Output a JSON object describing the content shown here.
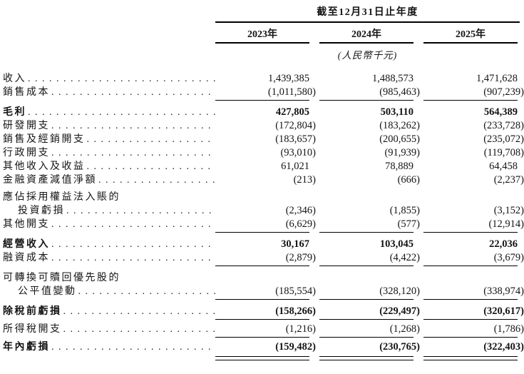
{
  "header": {
    "period_title": "截至12月31日止年度",
    "columns": [
      "2023年",
      "2024年",
      "2025年"
    ],
    "unit_note": "(人民幣千元)"
  },
  "colors": {
    "text": "#141414",
    "rule": "#000000",
    "background": "#ffffff"
  },
  "chart_data": {
    "type": "table",
    "title": "截至12月31日止年度 (人民幣千元)",
    "categories": [
      "2023年",
      "2024年",
      "2025年"
    ],
    "series": [
      {
        "name": "收入",
        "values": [
          1439385,
          1488573,
          1471628
        ]
      },
      {
        "name": "銷售成本",
        "values": [
          -1011580,
          -985463,
          -907239
        ]
      },
      {
        "name": "毛利",
        "values": [
          427805,
          503110,
          564389
        ]
      },
      {
        "name": "研發開支",
        "values": [
          -172804,
          -183262,
          -233728
        ]
      },
      {
        "name": "銷售及經銷開支",
        "values": [
          -183657,
          -200655,
          -235072
        ]
      },
      {
        "name": "行政開支",
        "values": [
          -93010,
          -91939,
          -119708
        ]
      },
      {
        "name": "其他收入及收益",
        "values": [
          61021,
          78889,
          64458
        ]
      },
      {
        "name": "金融資產減值淨額",
        "values": [
          -213,
          -666,
          -2237
        ]
      },
      {
        "name": "應佔採用權益法入賬的投資虧損",
        "values": [
          -2346,
          -1855,
          -3152
        ]
      },
      {
        "name": "其他開支",
        "values": [
          -6629,
          -577,
          -12914
        ]
      },
      {
        "name": "經營收入",
        "values": [
          30167,
          103045,
          22036
        ]
      },
      {
        "name": "融資成本",
        "values": [
          -2879,
          -4422,
          -3679
        ]
      },
      {
        "name": "可轉換可贖回優先股的公平值變動",
        "values": [
          -185554,
          -328120,
          -338974
        ]
      },
      {
        "name": "除稅前虧損",
        "values": [
          -158266,
          -229497,
          -320617
        ]
      },
      {
        "name": "所得稅開支",
        "values": [
          -1216,
          -1268,
          -1786
        ]
      },
      {
        "name": "年內虧損",
        "values": [
          -159482,
          -230765,
          -322403
        ]
      }
    ]
  },
  "rows": [
    {
      "label": "收入",
      "dots": true,
      "bold": false,
      "indent": false,
      "gap": null,
      "rule": null,
      "values": [
        "1,439,385",
        "1,488,573",
        "1,471,628"
      ]
    },
    {
      "label": "銷售成本",
      "dots": true,
      "bold": false,
      "indent": false,
      "gap": null,
      "rule": "single",
      "values": [
        "(1,011,580)",
        "(985,463)",
        "(907,239)"
      ]
    },
    {
      "label": "毛利",
      "dots": true,
      "bold": true,
      "indent": false,
      "gap": "m",
      "rule": null,
      "values": [
        "427,805",
        "503,110",
        "564,389"
      ]
    },
    {
      "label": "研發開支",
      "dots": true,
      "bold": false,
      "indent": false,
      "gap": null,
      "rule": null,
      "values": [
        "(172,804)",
        "(183,262)",
        "(233,728)"
      ]
    },
    {
      "label": "銷售及經銷開支",
      "dots": true,
      "bold": false,
      "indent": false,
      "gap": null,
      "rule": null,
      "values": [
        "(183,657)",
        "(200,655)",
        "(235,072)"
      ]
    },
    {
      "label": "行政開支",
      "dots": true,
      "bold": false,
      "indent": false,
      "gap": null,
      "rule": null,
      "values": [
        "(93,010)",
        "(91,939)",
        "(119,708)"
      ]
    },
    {
      "label": "其他收入及收益",
      "dots": true,
      "bold": false,
      "indent": false,
      "gap": null,
      "rule": null,
      "values": [
        "61,021",
        "78,889",
        "64,458"
      ]
    },
    {
      "label": "金融資產減值淨額",
      "dots": true,
      "bold": false,
      "indent": false,
      "gap": null,
      "rule": null,
      "values": [
        "(213)",
        "(666)",
        "(2,237)"
      ]
    },
    {
      "label": "應佔採用權益法入賬的",
      "dots": false,
      "bold": false,
      "indent": false,
      "gap": "s",
      "rule": null,
      "values": [
        "",
        "",
        ""
      ]
    },
    {
      "label": "投資虧損",
      "dots": true,
      "bold": false,
      "indent": true,
      "gap": null,
      "rule": null,
      "values": [
        "(2,346)",
        "(1,855)",
        "(3,152)"
      ]
    },
    {
      "label": "其他開支",
      "dots": true,
      "bold": false,
      "indent": false,
      "gap": null,
      "rule": "single",
      "values": [
        "(6,629)",
        "(577)",
        "(12,914)"
      ]
    },
    {
      "label": "經營收入",
      "dots": true,
      "bold": true,
      "indent": false,
      "gap": "m",
      "rule": null,
      "values": [
        "30,167",
        "103,045",
        "22,036"
      ]
    },
    {
      "label": "融資成本",
      "dots": true,
      "bold": false,
      "indent": false,
      "gap": null,
      "rule": "single",
      "values": [
        "(2,879)",
        "(4,422)",
        "(3,679)"
      ]
    },
    {
      "label": "可轉換可贖回優先股的",
      "dots": false,
      "bold": false,
      "indent": false,
      "gap": "m",
      "rule": null,
      "values": [
        "",
        "",
        ""
      ]
    },
    {
      "label": "公平值變動",
      "dots": true,
      "bold": false,
      "indent": true,
      "gap": null,
      "rule": "single",
      "values": [
        "(185,554)",
        "(328,120)",
        "(338,974)"
      ]
    },
    {
      "label": "除稅前虧損",
      "dots": true,
      "bold": true,
      "indent": false,
      "gap": "m",
      "rule": "single",
      "values": [
        "(158,266)",
        "(229,497)",
        "(320,617)"
      ]
    },
    {
      "label": "所得稅開支",
      "dots": true,
      "bold": false,
      "indent": false,
      "gap": "s",
      "rule": "single",
      "values": [
        "(1,216)",
        "(1,268)",
        "(1,786)"
      ]
    },
    {
      "label": "年內虧損",
      "dots": true,
      "bold": true,
      "indent": false,
      "gap": "s",
      "rule": "double",
      "values": [
        "(159,482)",
        "(230,765)",
        "(322,403)"
      ]
    }
  ]
}
